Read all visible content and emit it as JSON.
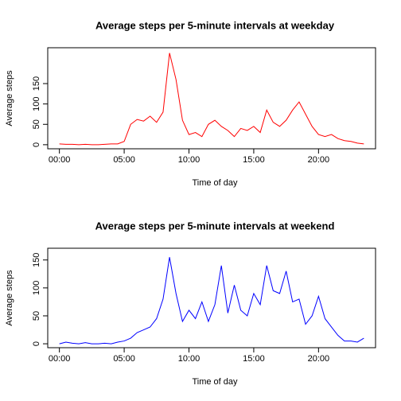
{
  "chart_data": [
    {
      "type": "line",
      "title": "Average steps per 5-minute intervals at weekday",
      "xlabel": "Time of day",
      "ylabel": "Average steps",
      "x": [
        0,
        0.5,
        1,
        1.5,
        2,
        2.5,
        3,
        3.5,
        4,
        4.5,
        5,
        5.5,
        6,
        6.5,
        7,
        7.5,
        8,
        8.5,
        9,
        9.5,
        10,
        10.5,
        11,
        11.5,
        12,
        12.5,
        13,
        13.5,
        14,
        14.5,
        15,
        15.5,
        16,
        16.5,
        17,
        17.5,
        18,
        18.5,
        19,
        19.5,
        20,
        20.5,
        21,
        21.5,
        22,
        22.5,
        23,
        23.5
      ],
      "series": [
        {
          "name": "weekday",
          "color": "#ff0000",
          "values": [
            2,
            1,
            1,
            0,
            1,
            0,
            0,
            1,
            2,
            2,
            8,
            50,
            62,
            58,
            70,
            55,
            80,
            225,
            160,
            60,
            25,
            30,
            20,
            50,
            60,
            45,
            35,
            20,
            40,
            35,
            45,
            30,
            85,
            55,
            45,
            60,
            85,
            105,
            75,
            45,
            25,
            20,
            25,
            15,
            10,
            8,
            4,
            2
          ]
        }
      ],
      "xlim": [
        -0.9,
        24.4
      ],
      "xticks": [
        {
          "value": 0,
          "label": "00:00"
        },
        {
          "value": 5,
          "label": "05:00"
        },
        {
          "value": 10,
          "label": "10:00"
        },
        {
          "value": 15,
          "label": "15:00"
        },
        {
          "value": 20,
          "label": "20:00"
        }
      ],
      "ylim": [
        -10,
        238
      ],
      "yticks": [
        0,
        50,
        100,
        150
      ]
    },
    {
      "type": "line",
      "title": "Average steps per 5-minute intervals at weekend",
      "xlabel": "Time of day",
      "ylabel": "Average steps",
      "x": [
        0,
        0.5,
        1,
        1.5,
        2,
        2.5,
        3,
        3.5,
        4,
        4.5,
        5,
        5.5,
        6,
        6.5,
        7,
        7.5,
        8,
        8.5,
        9,
        9.5,
        10,
        10.5,
        11,
        11.5,
        12,
        12.5,
        13,
        13.5,
        14,
        14.5,
        15,
        15.5,
        16,
        16.5,
        17,
        17.5,
        18,
        18.5,
        19,
        19.5,
        20,
        20.5,
        21,
        21.5,
        22,
        22.5,
        23,
        23.5
      ],
      "series": [
        {
          "name": "weekend",
          "color": "#0000ff",
          "values": [
            0,
            3,
            1,
            0,
            2,
            0,
            0,
            1,
            0,
            3,
            5,
            10,
            20,
            25,
            30,
            45,
            80,
            155,
            90,
            40,
            60,
            45,
            75,
            40,
            70,
            140,
            55,
            105,
            60,
            50,
            90,
            70,
            140,
            95,
            90,
            130,
            75,
            80,
            35,
            50,
            85,
            45,
            30,
            15,
            5,
            5,
            3,
            10
          ]
        }
      ],
      "xlim": [
        -0.9,
        24.4
      ],
      "xticks": [
        {
          "value": 0,
          "label": "00:00"
        },
        {
          "value": 5,
          "label": "05:00"
        },
        {
          "value": 10,
          "label": "10:00"
        },
        {
          "value": 15,
          "label": "15:00"
        },
        {
          "value": 20,
          "label": "20:00"
        }
      ],
      "ylim": [
        -7,
        171
      ],
      "yticks": [
        0,
        50,
        100,
        150
      ]
    }
  ]
}
